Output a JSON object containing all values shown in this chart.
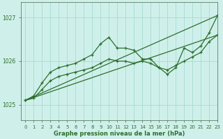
{
  "title": "Graphe pression niveau de la mer (hPa)",
  "background_color": "#cff0ea",
  "grid_color": "#aaddd6",
  "line_color": "#2d6e2d",
  "xlim": [
    -0.5,
    23
  ],
  "ylim": [
    1024.65,
    1027.35
  ],
  "yticks": [
    1025,
    1026,
    1027
  ],
  "xticks": [
    0,
    1,
    2,
    3,
    4,
    5,
    6,
    7,
    8,
    9,
    10,
    11,
    12,
    13,
    14,
    15,
    16,
    17,
    18,
    19,
    20,
    21,
    22,
    23
  ],
  "series": {
    "trend_low": {
      "x": [
        0,
        23
      ],
      "y": [
        1025.1,
        1026.6
      ],
      "marker": false
    },
    "trend_high": {
      "x": [
        0,
        23
      ],
      "y": [
        1025.1,
        1027.05
      ],
      "marker": false
    },
    "zigzag_low": {
      "x": [
        0,
        1,
        2,
        3,
        4,
        5,
        6,
        7,
        8,
        9,
        10,
        11,
        12,
        13,
        14,
        15,
        16,
        17,
        18,
        19,
        20,
        21,
        22,
        23
      ],
      "y": [
        1025.1,
        1025.15,
        1025.35,
        1025.55,
        1025.65,
        1025.7,
        1025.75,
        1025.8,
        1025.85,
        1025.95,
        1026.05,
        1026.0,
        1026.0,
        1025.95,
        1026.0,
        1025.95,
        1025.85,
        1025.8,
        1025.9,
        1026.0,
        1026.1,
        1026.2,
        1026.45,
        1026.6
      ],
      "marker": true
    },
    "zigzag_high": {
      "x": [
        0,
        1,
        2,
        3,
        4,
        5,
        6,
        7,
        8,
        9,
        10,
        11,
        12,
        13,
        14,
        15,
        16,
        17,
        18,
        19,
        20,
        21,
        22,
        23
      ],
      "y": [
        1025.1,
        1025.2,
        1025.5,
        1025.75,
        1025.85,
        1025.9,
        1025.95,
        1026.05,
        1026.15,
        1026.4,
        1026.55,
        1026.3,
        1026.3,
        1026.25,
        1026.05,
        1026.05,
        1025.85,
        1025.7,
        1025.85,
        1026.3,
        1026.2,
        1026.35,
        1026.65,
        1027.05
      ],
      "marker": true
    }
  }
}
